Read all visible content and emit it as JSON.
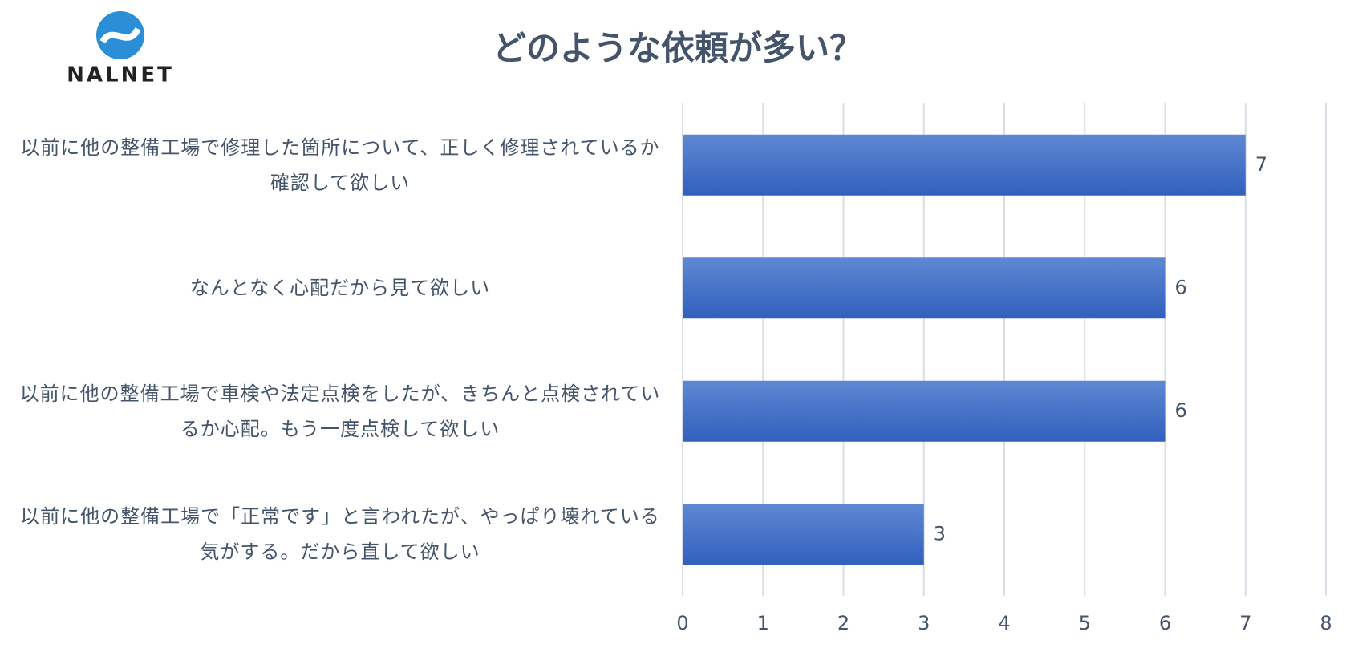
{
  "logo": {
    "text": "NALNET"
  },
  "chart_data": {
    "type": "bar",
    "orientation": "horizontal",
    "title": "どのような依頼が多い？",
    "categories": [
      "以前に他の整備工場で修理した箇所について、正しく修理されているか確認して欲しい",
      "なんとなく心配だから見て欲しい",
      "以前に他の整備工場で車検や法定点検をしたが、きちんと点検されているか心配。もう一度点検して欲しい",
      "以前に他の整備工場で「正常です」と言われたが、やっぱり壊れている気がする。だから直して欲しい"
    ],
    "values": [
      7,
      6,
      6,
      3
    ],
    "color": "#4472c4",
    "xlim": [
      0,
      8
    ],
    "xticks": [
      0,
      1,
      2,
      3,
      4,
      5,
      6,
      7,
      8
    ],
    "grid": true
  }
}
